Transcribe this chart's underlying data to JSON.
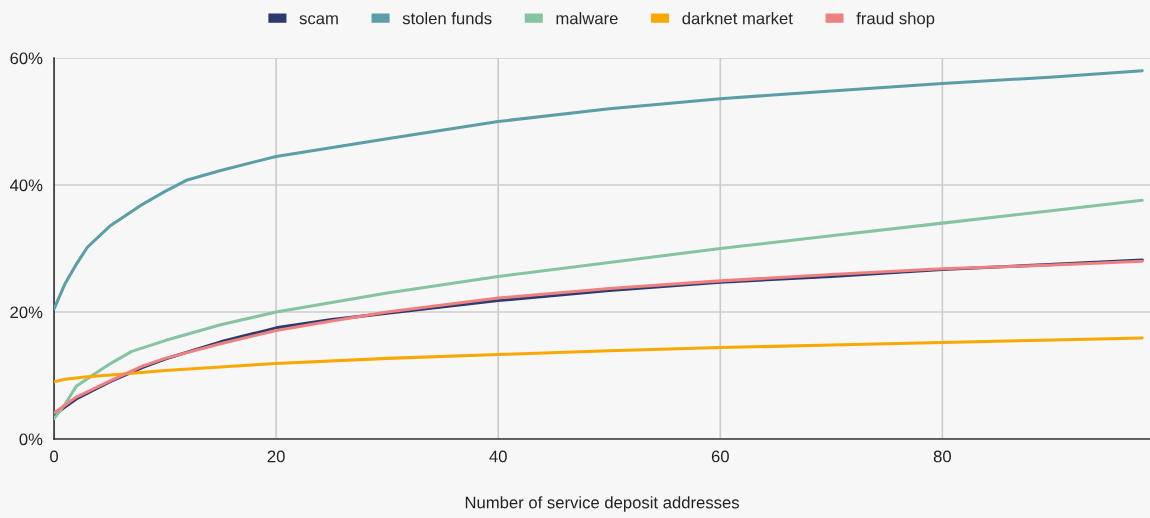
{
  "chart_data": {
    "type": "line",
    "xlabel": "Number of service deposit addresses",
    "xlim": [
      0,
      98.7
    ],
    "xticks": [
      0,
      20,
      40,
      60,
      80
    ],
    "ylim": [
      0,
      60
    ],
    "yticks": [
      {
        "value": 0,
        "label": "0%"
      },
      {
        "value": 20,
        "label": "20%"
      },
      {
        "value": 40,
        "label": "40%"
      },
      {
        "value": 60,
        "label": "60%"
      }
    ],
    "grid": true,
    "legend": "top",
    "marker": "none",
    "line_style": "solid",
    "series": [
      {
        "name": "scam",
        "color": "#2b3a6f",
        "x": [
          0,
          2,
          5,
          8,
          10,
          15,
          20,
          25,
          30,
          40,
          50,
          60,
          70,
          80,
          90,
          98
        ],
        "values": [
          3.8,
          6.3,
          9,
          11.3,
          12.6,
          15.3,
          17.5,
          18.8,
          19.8,
          21.8,
          23.4,
          24.7,
          25.6,
          26.7,
          27.5,
          28.2
        ]
      },
      {
        "name": "stolen funds",
        "color": "#5b9ea6",
        "x": [
          0,
          1,
          2,
          3,
          5,
          8,
          10,
          12,
          15,
          20,
          30,
          40,
          50,
          60,
          70,
          80,
          90,
          98
        ],
        "values": [
          20.5,
          24.5,
          27.5,
          30.2,
          33.5,
          37,
          39,
          40.8,
          42.3,
          44.5,
          47.3,
          50,
          52,
          53.6,
          54.8,
          56,
          57,
          58
        ]
      },
      {
        "name": "malware",
        "color": "#85c3a2",
        "x": [
          0,
          1,
          2,
          3,
          5,
          7,
          10,
          15,
          20,
          30,
          40,
          50,
          60,
          70,
          80,
          90,
          98
        ],
        "values": [
          3.2,
          5.5,
          8.3,
          9.5,
          11.8,
          13.8,
          15.5,
          18,
          20,
          23,
          25.6,
          27.8,
          30,
          32,
          34,
          36,
          37.6
        ]
      },
      {
        "name": "darknet market",
        "color": "#f9a800",
        "x": [
          0,
          1,
          3,
          6,
          10,
          20,
          30,
          40,
          50,
          60,
          70,
          80,
          90,
          98
        ],
        "values": [
          9,
          9.4,
          9.8,
          10.2,
          10.8,
          11.9,
          12.7,
          13.3,
          13.9,
          14.4,
          14.8,
          15.2,
          15.6,
          15.9
        ]
      },
      {
        "name": "fraud shop",
        "color": "#f08080",
        "x": [
          0,
          2,
          5,
          8,
          10,
          15,
          20,
          25,
          30,
          40,
          50,
          60,
          70,
          80,
          90,
          98
        ],
        "values": [
          4.1,
          6.6,
          9.1,
          11.5,
          12.7,
          15,
          17.1,
          18.6,
          20,
          22.2,
          23.7,
          24.9,
          25.9,
          26.8,
          27.4,
          28
        ]
      }
    ]
  }
}
